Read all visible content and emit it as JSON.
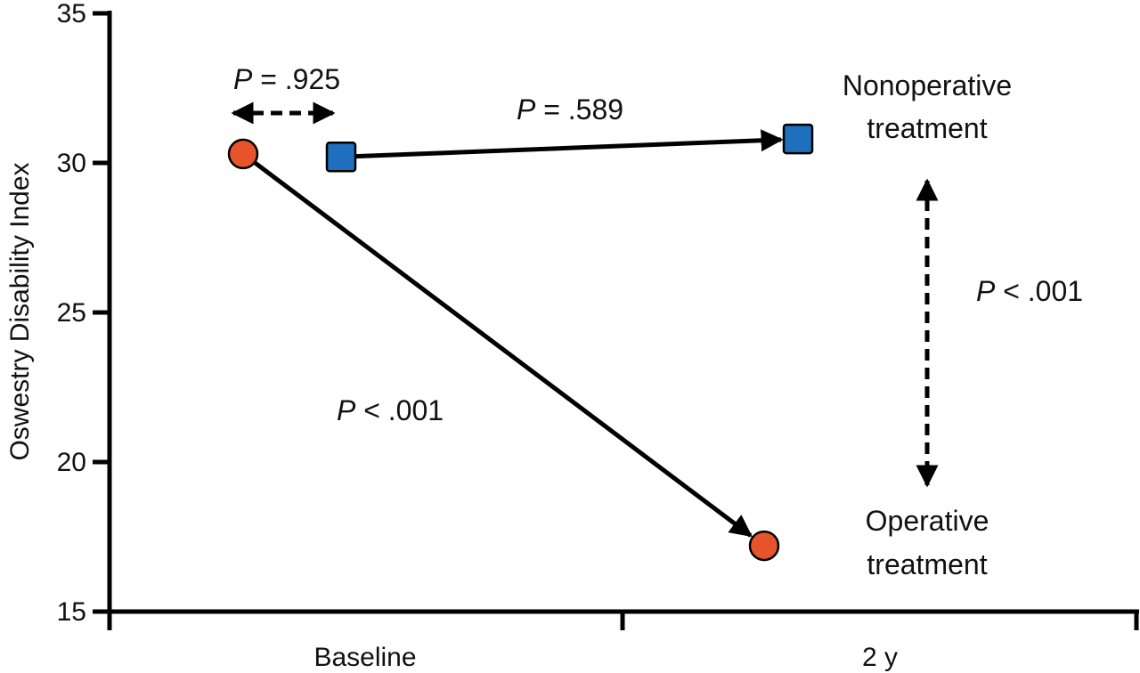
{
  "chart_data": {
    "type": "line",
    "title": "",
    "xlabel": "",
    "ylabel": "Oswestry Disability Index",
    "ylim": [
      15,
      35
    ],
    "yticks": [
      "15",
      "20",
      "25",
      "30",
      "35"
    ],
    "categories": [
      "Baseline",
      "2 y"
    ],
    "grid": false,
    "series": [
      {
        "name": "Nonoperative treatment",
        "marker": "square",
        "color": "#1f6fbf",
        "values": [
          30.2,
          30.8
        ]
      },
      {
        "name": "Operative treatment",
        "marker": "circle",
        "color": "#e8542a",
        "values": [
          30.3,
          17.2
        ]
      }
    ],
    "labels": {
      "nonoperative": [
        "Nonoperative",
        "treatment"
      ],
      "operative": [
        "Operative",
        "treatment"
      ]
    },
    "p_values": {
      "baseline_comparison": ".925",
      "nonoperative_change": ".589",
      "operative_change": "< .001",
      "two_year_comparison": "< .001"
    },
    "p_symbol": "P",
    "equals_symbol": "="
  }
}
